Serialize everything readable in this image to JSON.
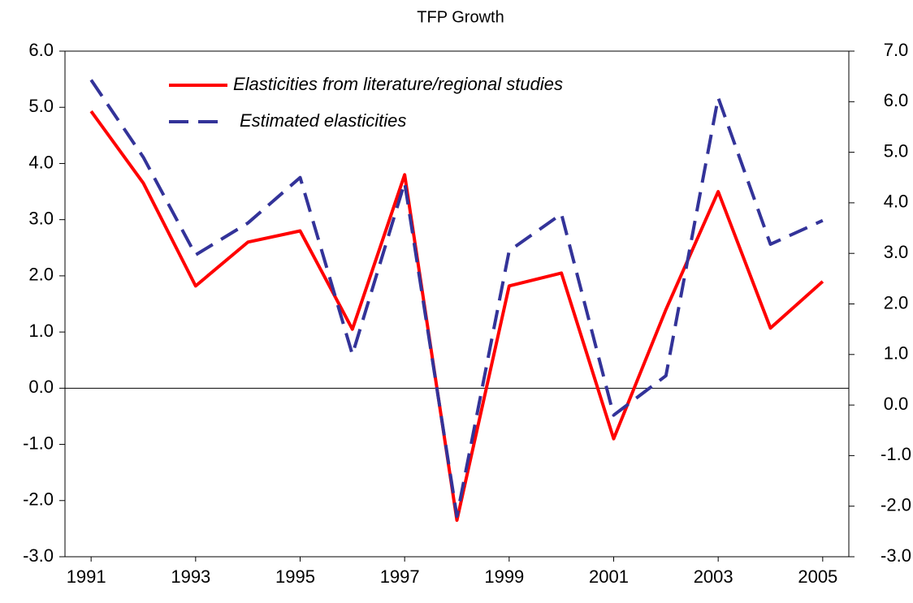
{
  "chart_data": {
    "type": "line",
    "title": "TFP Growth",
    "x": [
      1991,
      1992,
      1993,
      1994,
      1995,
      1996,
      1997,
      1998,
      1999,
      2000,
      2001,
      2002,
      2003,
      2004,
      2005
    ],
    "xlim": [
      1990.5,
      2005.5
    ],
    "xticks": [
      1991,
      1993,
      1995,
      1997,
      1999,
      2001,
      2003,
      2005
    ],
    "ylim": [
      -3,
      6
    ],
    "yticks": [
      {
        "value": -3,
        "label": "-3.0"
      },
      {
        "value": -2,
        "label": "-2.0"
      },
      {
        "value": -1,
        "label": "-1.0"
      },
      {
        "value": 0,
        "label": "0.0"
      },
      {
        "value": 1,
        "label": "1.0"
      },
      {
        "value": 2,
        "label": "2.0"
      },
      {
        "value": 3,
        "label": "3.0"
      },
      {
        "value": 4,
        "label": "4.0"
      },
      {
        "value": 5,
        "label": "5.0"
      },
      {
        "value": 6,
        "label": "6.0"
      }
    ],
    "y2lim": [
      -3,
      7
    ],
    "y2ticks": [
      {
        "value": -3,
        "label": "-3.0"
      },
      {
        "value": -2,
        "label": "-2.0"
      },
      {
        "value": -1,
        "label": "-1.0"
      },
      {
        "value": 0,
        "label": "0.0"
      },
      {
        "value": 1,
        "label": "1.0"
      },
      {
        "value": 2,
        "label": "2.0"
      },
      {
        "value": 3,
        "label": "3.0"
      },
      {
        "value": 4,
        "label": "4.0"
      },
      {
        "value": 5,
        "label": "5.0"
      },
      {
        "value": 6,
        "label": "6.0"
      },
      {
        "value": 7,
        "label": "7.0"
      }
    ],
    "legend": "upper left",
    "series": [
      {
        "name": "Elasticities from literature/regional studies",
        "color": "#ff0000",
        "style": "solid",
        "values": [
          4.93,
          3.65,
          1.82,
          2.6,
          2.8,
          1.05,
          3.8,
          -2.35,
          1.82,
          2.05,
          -0.9,
          1.4,
          3.5,
          1.07,
          1.9
        ]
      },
      {
        "name": "Estimated elasticities",
        "color": "#333399",
        "style": "dashed",
        "axis": "y2",
        "values": [
          6.43,
          4.9,
          2.97,
          3.6,
          4.5,
          1.0,
          4.4,
          -2.2,
          3.05,
          3.78,
          -0.2,
          0.58,
          6.08,
          3.18,
          3.65
        ]
      }
    ]
  }
}
